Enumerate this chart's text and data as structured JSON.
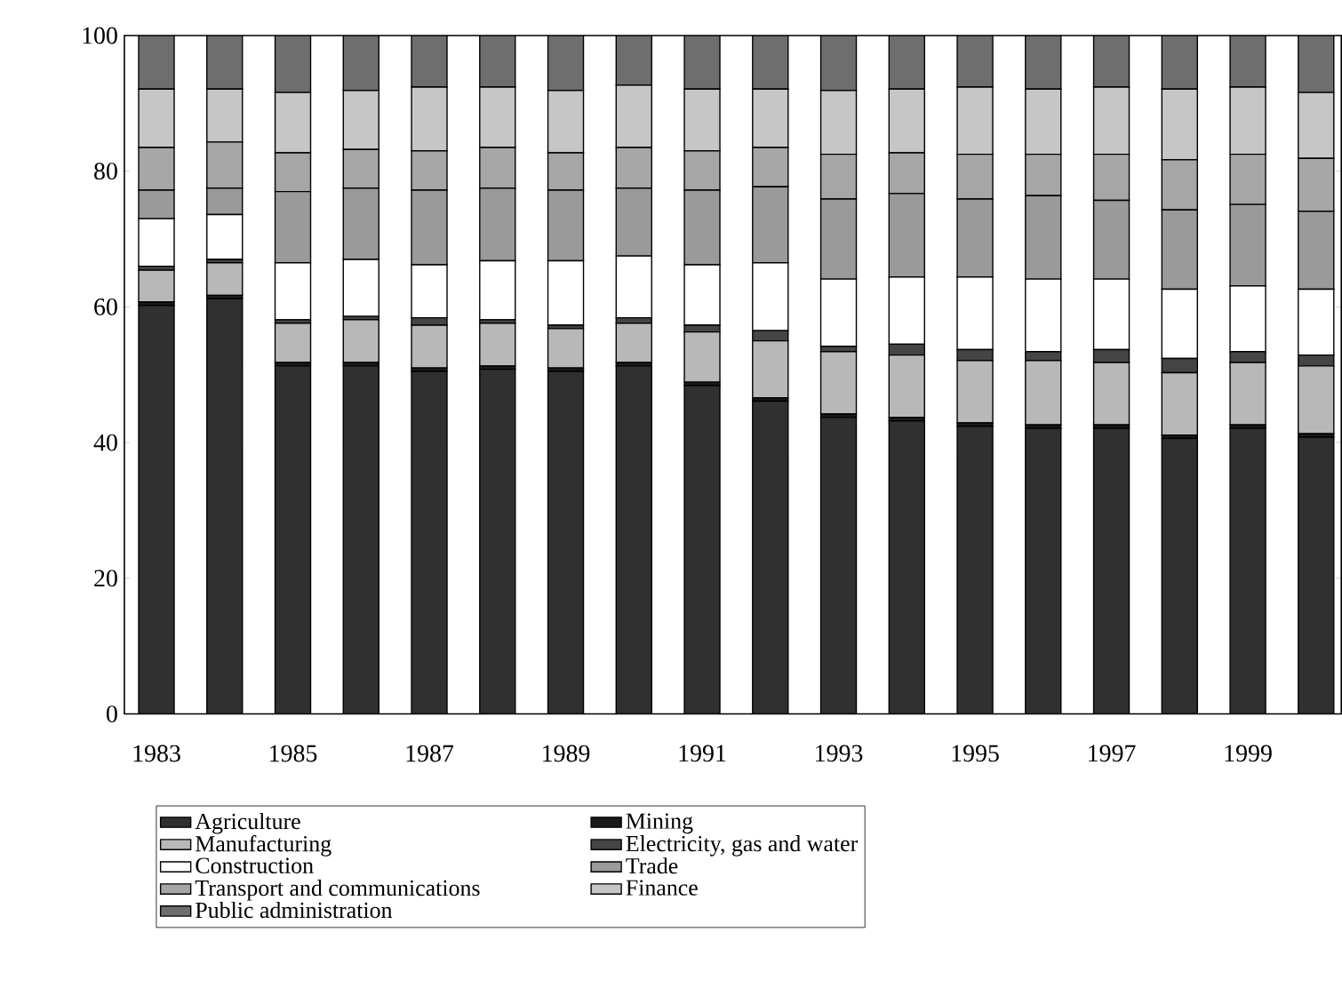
{
  "chart_data": {
    "type": "bar",
    "stacked": true,
    "legend": "bottom",
    "grid": false,
    "categories": [
      "1983",
      null,
      "1985",
      null,
      "1987",
      null,
      "1989",
      null,
      "1991",
      null,
      "1993",
      null,
      "1995",
      null,
      "1997",
      null,
      "1999",
      null
    ],
    "ylim": [
      0,
      100
    ],
    "yticks": [
      0,
      20,
      40,
      60,
      80,
      100
    ],
    "series": [
      {
        "name": "Agriculture",
        "color": "#303030",
        "values": [
          60.2,
          61.2,
          51.3,
          51.3,
          50.5,
          50.8,
          50.5,
          51.3,
          48.4,
          46.1,
          43.7,
          43.2,
          42.4,
          42.1,
          42.1,
          40.6,
          42.1,
          40.8
        ]
      },
      {
        "name": "Mining",
        "color": "#1a1a1a",
        "values": [
          0.5,
          0.5,
          0.5,
          0.5,
          0.5,
          0.5,
          0.5,
          0.5,
          0.5,
          0.5,
          0.5,
          0.5,
          0.5,
          0.5,
          0.5,
          0.5,
          0.5,
          0.5
        ]
      },
      {
        "name": "Manufacturing",
        "color": "#b8b8b8",
        "values": [
          4.7,
          4.8,
          5.8,
          6.3,
          6.3,
          6.3,
          5.8,
          5.8,
          7.4,
          8.4,
          9.2,
          9.2,
          9.2,
          9.5,
          9.2,
          9.2,
          9.2,
          10.0
        ]
      },
      {
        "name": "Electricity, gas and water",
        "color": "#454545",
        "values": [
          0.6,
          0.5,
          0.5,
          0.5,
          1.1,
          0.5,
          0.5,
          0.8,
          1.0,
          1.5,
          0.8,
          1.6,
          1.6,
          1.3,
          1.9,
          2.1,
          1.6,
          1.6
        ]
      },
      {
        "name": "Construction",
        "color": "#ffffff",
        "values": [
          7.0,
          6.6,
          8.4,
          8.4,
          7.8,
          8.7,
          9.5,
          9.1,
          8.9,
          10.0,
          9.9,
          9.9,
          10.7,
          10.7,
          10.4,
          10.2,
          9.7,
          9.7
        ]
      },
      {
        "name": "Trade",
        "color": "#9a9a9a",
        "values": [
          4.2,
          3.9,
          10.5,
          10.5,
          11.0,
          10.7,
          10.4,
          10.0,
          11.0,
          11.2,
          11.8,
          12.3,
          11.5,
          12.3,
          11.6,
          11.7,
          12.0,
          11.5
        ]
      },
      {
        "name": "Transport and communications",
        "color": "#a6a6a6",
        "values": [
          6.3,
          6.8,
          5.7,
          5.7,
          5.8,
          6.0,
          5.5,
          6.0,
          5.8,
          5.8,
          6.6,
          6.0,
          6.6,
          6.1,
          6.8,
          7.4,
          7.4,
          7.8
        ]
      },
      {
        "name": "Finance",
        "color": "#c6c6c6",
        "values": [
          8.6,
          7.8,
          8.9,
          8.7,
          9.4,
          8.9,
          9.2,
          9.2,
          9.1,
          8.6,
          9.4,
          9.4,
          9.9,
          9.6,
          9.9,
          10.4,
          9.9,
          9.7
        ]
      },
      {
        "name": "Public administration",
        "color": "#6e6e6e",
        "values": [
          7.9,
          7.9,
          8.4,
          8.1,
          7.6,
          7.6,
          8.1,
          7.3,
          7.9,
          7.9,
          8.1,
          7.9,
          7.6,
          7.9,
          7.6,
          7.9,
          7.6,
          8.4
        ]
      }
    ]
  }
}
